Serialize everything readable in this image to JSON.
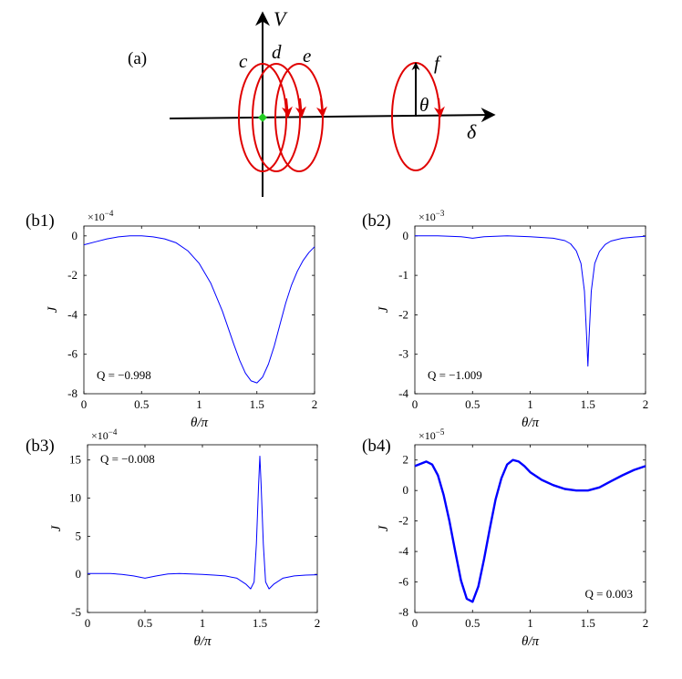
{
  "diagram": {
    "label": "(a)",
    "axis_v_label": "V",
    "axis_delta_label": "δ",
    "loop_labels": [
      "c",
      "d",
      "e",
      "f"
    ],
    "angle_label": "θ",
    "marker_color": "#22cc22",
    "loop_color": "#e00000"
  },
  "chart_data": [
    {
      "type": "line",
      "panel_label": "(b1)",
      "xlabel": "θ/π",
      "ylabel": "J",
      "multiplier_base": "×10",
      "multiplier_exp": "−4",
      "annotation": "Q = −0.998",
      "annotation_position": "bottom-left",
      "xlim": [
        0,
        2
      ],
      "ylim": [
        -8,
        0.5
      ],
      "xticks": [
        0,
        0.5,
        1,
        1.5,
        2
      ],
      "xtick_labels": [
        "0",
        "0.5",
        "1",
        "1.5",
        "2"
      ],
      "yticks": [
        -8,
        -6,
        -4,
        -2,
        0
      ],
      "ytick_labels": [
        "-8",
        "-6",
        "-4",
        "-2",
        "0"
      ],
      "line_color": "#0000ff",
      "series": [
        {
          "x": [
            0,
            0.1,
            0.2,
            0.3,
            0.4,
            0.5,
            0.6,
            0.7,
            0.8,
            0.9,
            1.0,
            1.1,
            1.2,
            1.3,
            1.35,
            1.4,
            1.45,
            1.5,
            1.55,
            1.6,
            1.65,
            1.7,
            1.75,
            1.8,
            1.85,
            1.9,
            1.95,
            2.0
          ],
          "y": [
            -0.45,
            -0.3,
            -0.15,
            -0.05,
            0,
            0,
            -0.05,
            -0.15,
            -0.35,
            -0.75,
            -1.4,
            -2.4,
            -3.8,
            -5.5,
            -6.3,
            -6.95,
            -7.35,
            -7.45,
            -7.15,
            -6.5,
            -5.6,
            -4.5,
            -3.4,
            -2.5,
            -1.8,
            -1.25,
            -0.85,
            -0.55
          ]
        }
      ]
    },
    {
      "type": "line",
      "panel_label": "(b2)",
      "xlabel": "θ/π",
      "ylabel": "J",
      "multiplier_base": "×10",
      "multiplier_exp": "−3",
      "annotation": "Q = −1.009",
      "annotation_position": "bottom-left",
      "xlim": [
        0,
        2
      ],
      "ylim": [
        -4,
        0.25
      ],
      "xticks": [
        0,
        0.5,
        1,
        1.5,
        2
      ],
      "xtick_labels": [
        "0",
        "0.5",
        "1",
        "1.5",
        "2"
      ],
      "yticks": [
        -4,
        -3,
        -2,
        -1,
        0
      ],
      "ytick_labels": [
        "-4",
        "-3",
        "-2",
        "-1",
        "0"
      ],
      "line_color": "#0000ff",
      "series": [
        {
          "x": [
            0,
            0.2,
            0.4,
            0.5,
            0.6,
            0.8,
            1.0,
            1.2,
            1.3,
            1.35,
            1.4,
            1.44,
            1.47,
            1.49,
            1.5,
            1.51,
            1.53,
            1.56,
            1.6,
            1.65,
            1.7,
            1.8,
            1.9,
            2.0
          ],
          "y": [
            0,
            0,
            -0.02,
            -0.06,
            -0.02,
            0,
            -0.02,
            -0.06,
            -0.12,
            -0.2,
            -0.38,
            -0.7,
            -1.4,
            -2.6,
            -3.3,
            -2.6,
            -1.4,
            -0.7,
            -0.4,
            -0.22,
            -0.13,
            -0.06,
            -0.03,
            -0.01
          ]
        }
      ]
    },
    {
      "type": "line",
      "panel_label": "(b3)",
      "xlabel": "θ/π",
      "ylabel": "J",
      "multiplier_base": "×10",
      "multiplier_exp": "−4",
      "annotation": "Q = −0.008",
      "annotation_position": "top-left",
      "xlim": [
        0,
        2
      ],
      "ylim": [
        -5,
        17
      ],
      "xticks": [
        0,
        0.5,
        1,
        1.5,
        2
      ],
      "xtick_labels": [
        "0",
        "0.5",
        "1",
        "1.5",
        "2"
      ],
      "yticks": [
        -5,
        0,
        5,
        10,
        15
      ],
      "ytick_labels": [
        "-5",
        "0",
        "5",
        "10",
        "15"
      ],
      "line_color": "#0000ff",
      "series": [
        {
          "x": [
            0,
            0.2,
            0.3,
            0.4,
            0.5,
            0.6,
            0.7,
            0.8,
            0.9,
            1.0,
            1.1,
            1.2,
            1.3,
            1.38,
            1.42,
            1.45,
            1.47,
            1.49,
            1.5,
            1.51,
            1.53,
            1.55,
            1.58,
            1.62,
            1.7,
            1.8,
            1.9,
            2.0
          ],
          "y": [
            0.1,
            0.1,
            0,
            -0.2,
            -0.5,
            -0.2,
            0.05,
            0.1,
            0.05,
            0,
            -0.1,
            -0.2,
            -0.5,
            -1.3,
            -1.9,
            -1.0,
            4,
            12,
            15.5,
            12,
            4,
            -1.0,
            -1.9,
            -1.3,
            -0.5,
            -0.2,
            -0.1,
            -0.05
          ]
        }
      ]
    },
    {
      "type": "line",
      "panel_label": "(b4)",
      "xlabel": "θ/π",
      "ylabel": "J",
      "multiplier_base": "×10",
      "multiplier_exp": "−5",
      "annotation": "Q = 0.003",
      "annotation_position": "bottom-right",
      "xlim": [
        0,
        2
      ],
      "ylim": [
        -8,
        3
      ],
      "xticks": [
        0,
        0.5,
        1,
        1.5,
        2
      ],
      "xtick_labels": [
        "0",
        "0.5",
        "1",
        "1.5",
        "2"
      ],
      "yticks": [
        -8,
        -6,
        -4,
        -2,
        0,
        2
      ],
      "ytick_labels": [
        "-8",
        "-6",
        "-4",
        "-2",
        "0",
        "2"
      ],
      "line_color": "#0000ff",
      "series": [
        {
          "x": [
            0,
            0.1,
            0.15,
            0.2,
            0.25,
            0.3,
            0.35,
            0.4,
            0.45,
            0.5,
            0.55,
            0.6,
            0.65,
            0.7,
            0.75,
            0.8,
            0.85,
            0.9,
            0.95,
            1.0,
            1.1,
            1.2,
            1.3,
            1.4,
            1.5,
            1.6,
            1.7,
            1.8,
            1.9,
            2.0
          ],
          "y": [
            1.6,
            1.9,
            1.7,
            1.0,
            -0.3,
            -2.0,
            -4.0,
            -5.9,
            -7.1,
            -7.3,
            -6.3,
            -4.5,
            -2.5,
            -0.6,
            0.8,
            1.7,
            2.0,
            1.9,
            1.6,
            1.2,
            0.7,
            0.35,
            0.1,
            0,
            0,
            0.2,
            0.6,
            1.0,
            1.35,
            1.6
          ]
        }
      ]
    }
  ]
}
